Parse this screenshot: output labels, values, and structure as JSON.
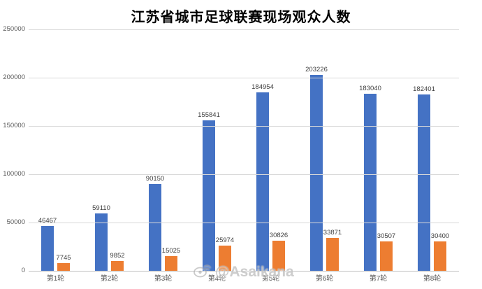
{
  "chart_data": {
    "type": "bar",
    "title": "江苏省城市足球联赛现场观众人数",
    "categories": [
      "第1轮",
      "第2轮",
      "第3轮",
      "第4轮",
      "第5轮",
      "第6轮",
      "第7轮",
      "第8轮"
    ],
    "series": [
      {
        "color": "#4472C4",
        "values": [
          46467,
          59110,
          90150,
          155841,
          184954,
          203226,
          183040,
          182401
        ]
      },
      {
        "color": "#ED7D31",
        "values": [
          7745,
          9852,
          15025,
          25974,
          30826,
          33871,
          30507,
          30400
        ]
      }
    ],
    "xlabel": "",
    "ylabel": "",
    "ylim": [
      0,
      250000
    ],
    "yticks": [
      0,
      50000,
      100000,
      150000,
      200000,
      250000
    ],
    "grid": true,
    "legend": false,
    "data_labels": true
  },
  "watermark": {
    "icon": "weibo-icon",
    "text": "@Asaikana"
  },
  "colors": {
    "gridline": "#d9d9d9",
    "axis_line": "#bfbfbf",
    "tick_label": "#595959",
    "data_label": "#404040"
  }
}
